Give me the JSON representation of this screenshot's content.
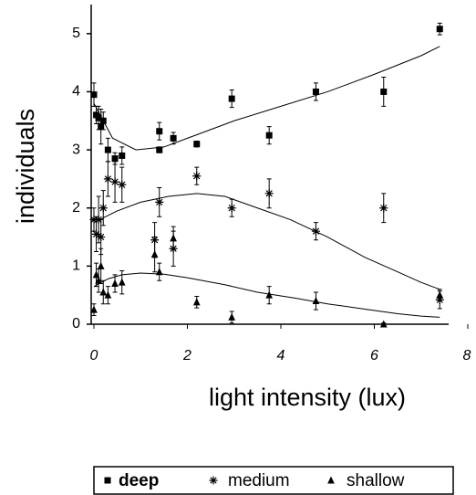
{
  "chart_data": {
    "type": "scatter",
    "x_label": "light intensity (lux)",
    "y_label": "individuals",
    "xlim": [
      0,
      8
    ],
    "ylim": [
      0,
      5.5
    ],
    "xticks": [
      0,
      2,
      4,
      6,
      8
    ],
    "yticks": [
      0,
      1,
      2,
      3,
      4,
      5
    ],
    "legend": "bottom",
    "series": [
      {
        "name": "deep",
        "marker": "square",
        "color": "#000",
        "x": [
          0,
          0.05,
          0.1,
          0.15,
          0.2,
          0.3,
          0.45,
          0.6,
          1.4,
          1.4,
          1.7,
          2.2,
          2.95,
          3.75,
          4.75,
          6.2,
          7.4
        ],
        "values": [
          3.95,
          3.6,
          3.55,
          3.4,
          3.5,
          3.0,
          2.85,
          2.9,
          3.32,
          3.0,
          3.2,
          3.1,
          3.88,
          3.25,
          4.0,
          4.0,
          5.08
        ],
        "errors": [
          0.2,
          0.15,
          0.2,
          0.3,
          0.15,
          0.2,
          0.1,
          0.15,
          0.15,
          0.05,
          0.1,
          0.05,
          0.15,
          0.15,
          0.15,
          0.25,
          0.1
        ],
        "fit": {
          "x": [
            0,
            0.4,
            0.9,
            1.5,
            2,
            3,
            4,
            5,
            6,
            7,
            7.4
          ],
          "y": [
            3.8,
            3.2,
            3.0,
            3.05,
            3.2,
            3.5,
            3.75,
            4.0,
            4.3,
            4.62,
            4.78
          ]
        }
      },
      {
        "name": "medium",
        "marker": "asterisk",
        "color": "#000",
        "x": [
          0,
          0.05,
          0.1,
          0.15,
          0.2,
          0.3,
          0.45,
          0.6,
          1.3,
          1.4,
          1.7,
          2.2,
          2.95,
          3.75,
          4.75,
          6.2,
          7.4
        ],
        "values": [
          1.8,
          1.55,
          1.8,
          1.5,
          2.0,
          2.5,
          2.45,
          2.4,
          1.45,
          2.1,
          1.3,
          2.55,
          2.0,
          2.25,
          1.6,
          2.0,
          0.42
        ],
        "errors": [
          0.2,
          0.3,
          0.4,
          0.3,
          0.3,
          0.3,
          0.35,
          0.3,
          0.3,
          0.25,
          0.3,
          0.15,
          0.15,
          0.25,
          0.15,
          0.25,
          0.15
        ],
        "fit": {
          "x": [
            0,
            0.5,
            1,
            1.6,
            2.2,
            2.8,
            3.5,
            4.2,
            5,
            5.8,
            6.5,
            7,
            7.4
          ],
          "y": [
            1.75,
            1.95,
            2.1,
            2.2,
            2.25,
            2.2,
            2.0,
            1.8,
            1.5,
            1.15,
            0.9,
            0.72,
            0.6
          ]
        }
      },
      {
        "name": "shallow",
        "marker": "triangle",
        "color": "#000",
        "x": [
          0,
          0.05,
          0.1,
          0.15,
          0.2,
          0.3,
          0.45,
          0.6,
          1.3,
          1.4,
          1.7,
          2.2,
          2.95,
          3.75,
          4.75,
          6.2,
          7.4
        ],
        "values": [
          0.25,
          0.85,
          0.75,
          1.0,
          0.55,
          0.5,
          0.7,
          0.72,
          1.2,
          0.9,
          1.48,
          0.38,
          0.12,
          0.5,
          0.4,
          0.0,
          0.5
        ],
        "errors": [
          0.1,
          0.2,
          0.2,
          0.3,
          0.2,
          0.15,
          0.15,
          0.2,
          0.3,
          0.15,
          0.2,
          0.1,
          0.1,
          0.15,
          0.15,
          0.02,
          0.1
        ],
        "fit": {
          "x": [
            0,
            0.3,
            0.6,
            1,
            1.5,
            2,
            2.8,
            3.5,
            4.3,
            5,
            5.8,
            6.5,
            7,
            7.4
          ],
          "y": [
            0.65,
            0.78,
            0.85,
            0.88,
            0.86,
            0.8,
            0.68,
            0.55,
            0.45,
            0.35,
            0.26,
            0.18,
            0.14,
            0.12
          ]
        }
      }
    ]
  }
}
